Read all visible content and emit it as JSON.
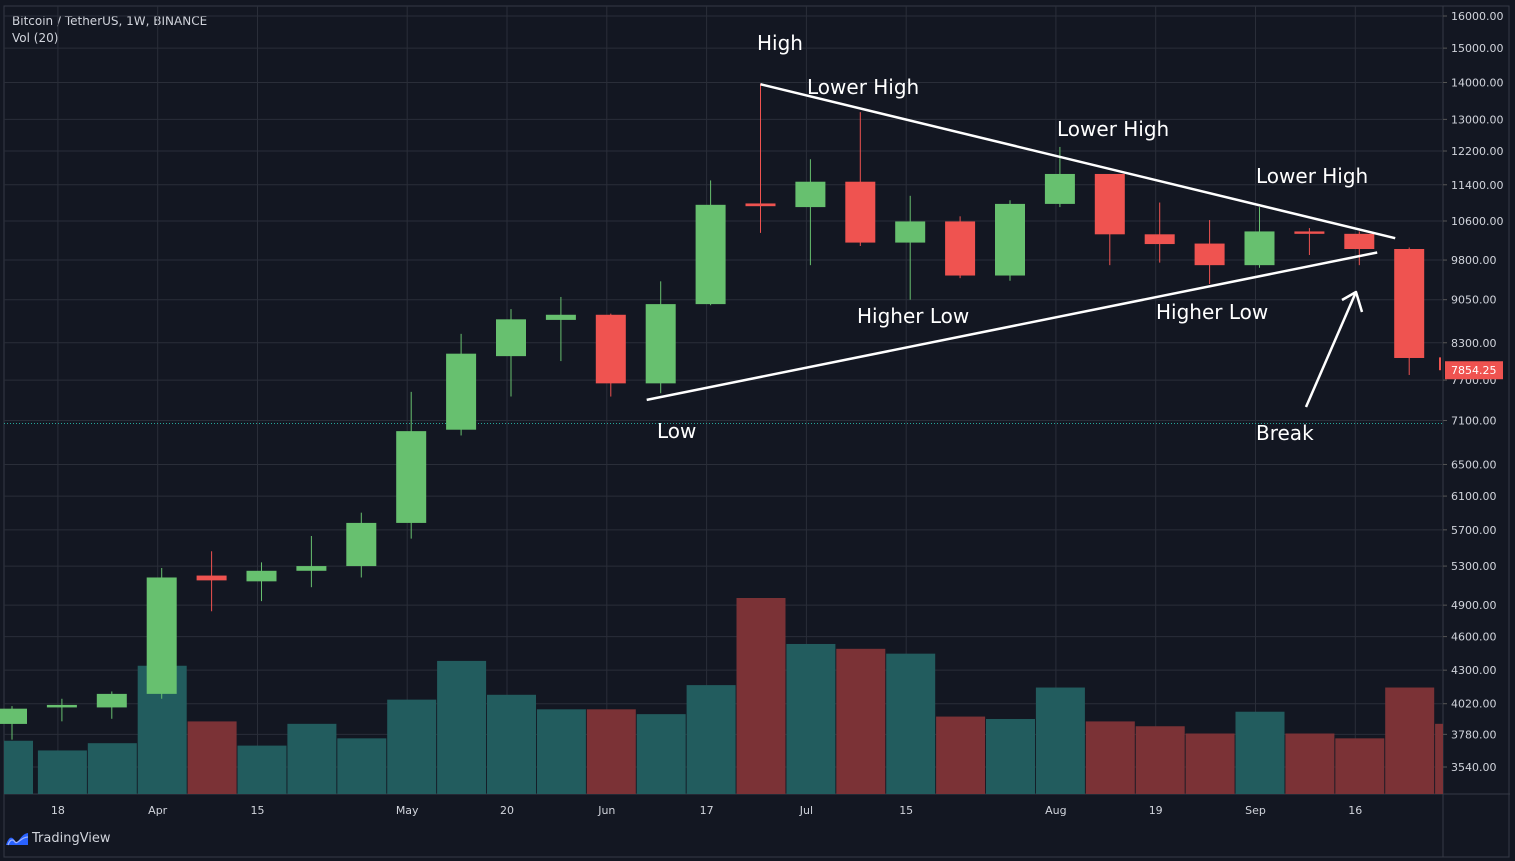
{
  "header": {
    "symbol": "Bitcoin / TetherUS, 1W, BINANCE",
    "indicator": "Vol (20)"
  },
  "brand": {
    "name": "TradingView",
    "icon": "tradingview-logo-icon"
  },
  "colors": {
    "background": "#131722",
    "up": "#67c06f",
    "down": "#ef5350",
    "volume_up": "#225c5e",
    "volume_down": "#7b3236",
    "grid": "#2a2e39",
    "text": "#d1d4dc",
    "annotation": "#ffffff",
    "last_price_bg": "#ef5350"
  },
  "chart_data": {
    "type": "candlestick",
    "title": "Bitcoin / TetherUS, 1W, BINANCE",
    "y_scale": "log",
    "ylim": [
      3200,
      16300
    ],
    "y_ticks": [
      "16000.00",
      "15000.00",
      "14000.00",
      "13000.00",
      "12200.00",
      "11400.00",
      "10600.00",
      "9800.00",
      "9050.00",
      "8300.00",
      "7700.00",
      "7100.00",
      "6500.00",
      "6100.00",
      "5700.00",
      "5300.00",
      "4900.00",
      "4600.00",
      "4300.00",
      "4020.00",
      "3780.00",
      "3540.00"
    ],
    "x_ticks": [
      {
        "label": "18",
        "index": 1
      },
      {
        "label": "Apr",
        "index": 3
      },
      {
        "label": "15",
        "index": 5
      },
      {
        "label": "May",
        "index": 8
      },
      {
        "label": "20",
        "index": 10
      },
      {
        "label": "Jun",
        "index": 12
      },
      {
        "label": "17",
        "index": 14
      },
      {
        "label": "Jul",
        "index": 16
      },
      {
        "label": "15",
        "index": 18
      },
      {
        "label": "Aug",
        "index": 21
      },
      {
        "label": "19",
        "index": 23
      },
      {
        "label": "Sep",
        "index": 25
      },
      {
        "label": "16",
        "index": 27
      }
    ],
    "candles": [
      {
        "o": 3860,
        "h": 4000,
        "l": 3740,
        "c": 3980
      },
      {
        "o": 3990,
        "h": 4060,
        "l": 3880,
        "c": 4010
      },
      {
        "o": 3990,
        "h": 4120,
        "l": 3900,
        "c": 4100
      },
      {
        "o": 4100,
        "h": 5280,
        "l": 4060,
        "c": 5180
      },
      {
        "o": 5200,
        "h": 5460,
        "l": 4840,
        "c": 5150
      },
      {
        "o": 5140,
        "h": 5340,
        "l": 4940,
        "c": 5250
      },
      {
        "o": 5250,
        "h": 5630,
        "l": 5080,
        "c": 5300
      },
      {
        "o": 5300,
        "h": 5900,
        "l": 5180,
        "c": 5780
      },
      {
        "o": 5780,
        "h": 7520,
        "l": 5600,
        "c": 6950
      },
      {
        "o": 6970,
        "h": 8450,
        "l": 6890,
        "c": 8120
      },
      {
        "o": 8080,
        "h": 8880,
        "l": 7450,
        "c": 8700
      },
      {
        "o": 8690,
        "h": 9100,
        "l": 8000,
        "c": 8780
      },
      {
        "o": 8780,
        "h": 8800,
        "l": 7450,
        "c": 7650
      },
      {
        "o": 7650,
        "h": 9390,
        "l": 7500,
        "c": 8970
      },
      {
        "o": 8970,
        "h": 11500,
        "l": 8950,
        "c": 10950
      },
      {
        "o": 10980,
        "h": 13970,
        "l": 10350,
        "c": 10920
      },
      {
        "o": 10900,
        "h": 12000,
        "l": 9700,
        "c": 11470
      },
      {
        "o": 11470,
        "h": 13190,
        "l": 10080,
        "c": 10150
      },
      {
        "o": 10150,
        "h": 11150,
        "l": 9050,
        "c": 10590
      },
      {
        "o": 10590,
        "h": 10700,
        "l": 9450,
        "c": 9500
      },
      {
        "o": 9500,
        "h": 11050,
        "l": 9400,
        "c": 10970
      },
      {
        "o": 10970,
        "h": 12300,
        "l": 10900,
        "c": 11650
      },
      {
        "o": 11650,
        "h": 11650,
        "l": 9700,
        "c": 10320
      },
      {
        "o": 10320,
        "h": 11000,
        "l": 9750,
        "c": 10120
      },
      {
        "o": 10130,
        "h": 10620,
        "l": 9340,
        "c": 9700
      },
      {
        "o": 9700,
        "h": 10900,
        "l": 9650,
        "c": 10380
      },
      {
        "o": 10380,
        "h": 10450,
        "l": 9900,
        "c": 10330
      },
      {
        "o": 10330,
        "h": 10380,
        "l": 9700,
        "c": 10020
      },
      {
        "o": 10020,
        "h": 10050,
        "l": 7780,
        "c": 8050
      },
      {
        "o": 8060,
        "h": 8080,
        "l": 7800,
        "c": 7854.25
      }
    ],
    "volume": [
      0.22,
      0.18,
      0.21,
      0.53,
      0.3,
      0.2,
      0.29,
      0.23,
      0.39,
      0.55,
      0.41,
      0.35,
      0.35,
      0.33,
      0.45,
      0.81,
      0.62,
      0.6,
      0.58,
      0.32,
      0.31,
      0.44,
      0.3,
      0.28,
      0.25,
      0.34,
      0.25,
      0.23,
      0.44,
      0.29
    ],
    "last_price": "7854.25",
    "annotations": [
      "High",
      "Lower High",
      "Lower High",
      "Lower High",
      "Higher Low",
      "Higher Low",
      "Low",
      "Break"
    ]
  }
}
